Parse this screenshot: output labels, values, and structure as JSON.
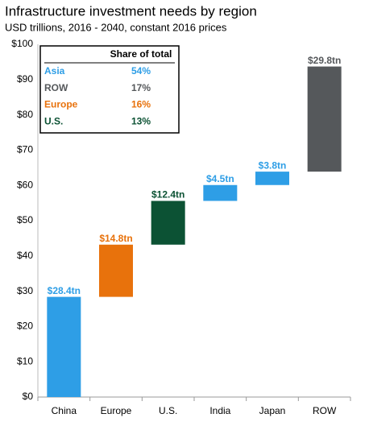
{
  "chart_data": {
    "type": "waterfall",
    "title": "Infrastructure investment needs by region",
    "subtitle": "USD trillions, 2016 - 2040, constant 2016 prices",
    "categories": [
      "China",
      "Europe",
      "U.S.",
      "India",
      "Japan",
      "ROW"
    ],
    "values": [
      28.4,
      14.8,
      12.4,
      4.5,
      3.8,
      29.8
    ],
    "value_labels": [
      "$28.4tn",
      "$14.8tn",
      "$12.4tn",
      "$4.5tn",
      "$3.8tn",
      "$29.8tn"
    ],
    "colors": [
      "#2e9ee6",
      "#e8720c",
      "#0c5234",
      "#2e9ee6",
      "#2e9ee6",
      "#55585b"
    ],
    "ylim": [
      0,
      100
    ],
    "yticks": [
      {
        "value": 0,
        "label": "$0"
      },
      {
        "value": 10,
        "label": "$10"
      },
      {
        "value": 20,
        "label": "$20"
      },
      {
        "value": 30,
        "label": "$30"
      },
      {
        "value": 40,
        "label": "$40"
      },
      {
        "value": 50,
        "label": "$50"
      },
      {
        "value": 60,
        "label": "$60"
      },
      {
        "value": 70,
        "label": "$70"
      },
      {
        "value": 80,
        "label": "$80"
      },
      {
        "value": 90,
        "label": "$90"
      },
      {
        "value": 100,
        "label": "$100"
      }
    ],
    "grid": false,
    "share_table": {
      "header": "Share of total",
      "rows": [
        {
          "label": "Asia",
          "value": "54%",
          "color": "#2e9ee6"
        },
        {
          "label": "ROW",
          "value": "17%",
          "color": "#55585b"
        },
        {
          "label": "Europe",
          "value": "16%",
          "color": "#e8720c"
        },
        {
          "label": "U.S.",
          "value": "13%",
          "color": "#0c5234"
        }
      ]
    }
  }
}
